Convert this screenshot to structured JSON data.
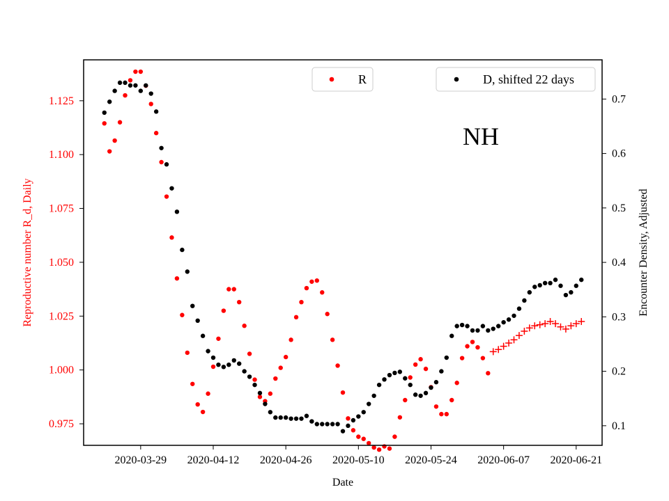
{
  "chart_data": {
    "type": "scatter",
    "title": "",
    "annotation": "NH",
    "xlabel": "Date",
    "ylabel_left": "Reproductive number R_d, Daily",
    "ylabel_right": "Encounter Density, Adjusted",
    "colors": {
      "R": "#ff0000",
      "D": "#000000",
      "left_axis": "#ff0000",
      "right_axis": "#000000"
    },
    "x_ticks": [
      "2020-03-29",
      "2020-04-12",
      "2020-04-26",
      "2020-05-10",
      "2020-05-24",
      "2020-06-07",
      "2020-06-21"
    ],
    "x_range": [
      "2020-03-18",
      "2020-06-26"
    ],
    "y_left_ticks": [
      "0.975",
      "1.000",
      "1.025",
      "1.050",
      "1.075",
      "1.100",
      "1.125"
    ],
    "y_left_range": [
      0.965,
      1.144
    ],
    "y_right_ticks": [
      "0.1",
      "0.2",
      "0.3",
      "0.4",
      "0.5",
      "0.6",
      "0.7"
    ],
    "y_right_range": [
      0.064,
      0.772
    ],
    "grid": false,
    "legends": [
      {
        "label": "R",
        "placement": "top-center"
      },
      {
        "label": "D, shifted 22 days",
        "placement": "top-right"
      }
    ],
    "series": [
      {
        "name": "R",
        "axis": "left",
        "marker": "dot",
        "points": [
          [
            "2020-03-22",
            1.1145
          ],
          [
            "2020-03-23",
            1.1015
          ],
          [
            "2020-03-24",
            1.1065
          ],
          [
            "2020-03-25",
            1.115
          ],
          [
            "2020-03-26",
            1.1275
          ],
          [
            "2020-03-27",
            1.1345
          ],
          [
            "2020-03-28",
            1.1385
          ],
          [
            "2020-03-29",
            1.1385
          ],
          [
            "2020-03-30",
            1.132
          ],
          [
            "2020-03-31",
            1.1235
          ],
          [
            "2020-04-01",
            1.11
          ],
          [
            "2020-04-02",
            1.0965
          ],
          [
            "2020-04-03",
            1.0805
          ],
          [
            "2020-04-04",
            1.0615
          ],
          [
            "2020-04-05",
            1.0425
          ],
          [
            "2020-04-06",
            1.0255
          ],
          [
            "2020-04-07",
            1.008
          ],
          [
            "2020-04-08",
            0.9935
          ],
          [
            "2020-04-09",
            0.984
          ],
          [
            "2020-04-10",
            0.9805
          ],
          [
            "2020-04-11",
            0.989
          ],
          [
            "2020-04-12",
            1.0015
          ],
          [
            "2020-04-13",
            1.0145
          ],
          [
            "2020-04-14",
            1.0275
          ],
          [
            "2020-04-15",
            1.0375
          ],
          [
            "2020-04-16",
            1.0375
          ],
          [
            "2020-04-17",
            1.0315
          ],
          [
            "2020-04-18",
            1.0205
          ],
          [
            "2020-04-19",
            1.0075
          ],
          [
            "2020-04-20",
            0.9955
          ],
          [
            "2020-04-21",
            0.9875
          ],
          [
            "2020-04-22",
            0.9855
          ],
          [
            "2020-04-23",
            0.989
          ],
          [
            "2020-04-24",
            0.996
          ],
          [
            "2020-04-25",
            1.001
          ],
          [
            "2020-04-26",
            1.006
          ],
          [
            "2020-04-27",
            1.014
          ],
          [
            "2020-04-28",
            1.0245
          ],
          [
            "2020-04-29",
            1.0315
          ],
          [
            "2020-04-30",
            1.038
          ],
          [
            "2020-05-01",
            1.041
          ],
          [
            "2020-05-02",
            1.0415
          ],
          [
            "2020-05-03",
            1.036
          ],
          [
            "2020-05-04",
            1.026
          ],
          [
            "2020-05-05",
            1.014
          ],
          [
            "2020-05-06",
            1.002
          ],
          [
            "2020-05-07",
            0.9895
          ],
          [
            "2020-05-08",
            0.9775
          ],
          [
            "2020-05-09",
            0.972
          ],
          [
            "2020-05-10",
            0.969
          ],
          [
            "2020-05-11",
            0.968
          ],
          [
            "2020-05-12",
            0.966
          ],
          [
            "2020-05-13",
            0.964
          ],
          [
            "2020-05-14",
            0.963
          ],
          [
            "2020-05-15",
            0.9645
          ],
          [
            "2020-05-16",
            0.9635
          ],
          [
            "2020-05-17",
            0.969
          ],
          [
            "2020-05-18",
            0.978
          ],
          [
            "2020-05-19",
            0.986
          ],
          [
            "2020-05-20",
            0.9965
          ],
          [
            "2020-05-21",
            1.0025
          ],
          [
            "2020-05-22",
            1.005
          ],
          [
            "2020-05-23",
            1.0005
          ],
          [
            "2020-05-24",
            0.992
          ],
          [
            "2020-05-25",
            0.983
          ],
          [
            "2020-05-26",
            0.9795
          ],
          [
            "2020-05-27",
            0.9795
          ],
          [
            "2020-05-28",
            0.986
          ],
          [
            "2020-05-29",
            0.994
          ],
          [
            "2020-05-30",
            1.0055
          ],
          [
            "2020-05-31",
            1.011
          ],
          [
            "2020-06-01",
            1.013
          ],
          [
            "2020-06-02",
            1.0105
          ],
          [
            "2020-06-03",
            1.0055
          ],
          [
            "2020-06-04",
            0.9985
          ]
        ]
      },
      {
        "name": "R",
        "axis": "left",
        "marker": "plus",
        "points": [
          [
            "2020-06-05",
            1.0085
          ],
          [
            "2020-06-06",
            1.0095
          ],
          [
            "2020-06-07",
            1.011
          ],
          [
            "2020-06-08",
            1.0125
          ],
          [
            "2020-06-09",
            1.014
          ],
          [
            "2020-06-10",
            1.016
          ],
          [
            "2020-06-11",
            1.018
          ],
          [
            "2020-06-12",
            1.0195
          ],
          [
            "2020-06-13",
            1.0205
          ],
          [
            "2020-06-14",
            1.021
          ],
          [
            "2020-06-15",
            1.0215
          ],
          [
            "2020-06-16",
            1.0225
          ],
          [
            "2020-06-17",
            1.0215
          ],
          [
            "2020-06-18",
            1.02
          ],
          [
            "2020-06-19",
            1.019
          ],
          [
            "2020-06-20",
            1.0205
          ],
          [
            "2020-06-21",
            1.0215
          ],
          [
            "2020-06-22",
            1.0225
          ]
        ]
      },
      {
        "name": "D, shifted 22 days",
        "axis": "right",
        "marker": "dot",
        "points": [
          [
            "2020-03-22",
            0.675
          ],
          [
            "2020-03-23",
            0.695
          ],
          [
            "2020-03-24",
            0.715
          ],
          [
            "2020-03-25",
            0.73
          ],
          [
            "2020-03-26",
            0.73
          ],
          [
            "2020-03-27",
            0.725
          ],
          [
            "2020-03-28",
            0.725
          ],
          [
            "2020-03-29",
            0.715
          ],
          [
            "2020-03-30",
            0.725
          ],
          [
            "2020-03-31",
            0.71
          ],
          [
            "2020-04-01",
            0.677
          ],
          [
            "2020-04-02",
            0.61
          ],
          [
            "2020-04-03",
            0.58
          ],
          [
            "2020-04-04",
            0.536
          ],
          [
            "2020-04-05",
            0.493
          ],
          [
            "2020-04-06",
            0.423
          ],
          [
            "2020-04-07",
            0.383
          ],
          [
            "2020-04-08",
            0.32
          ],
          [
            "2020-04-09",
            0.293
          ],
          [
            "2020-04-10",
            0.265
          ],
          [
            "2020-04-11",
            0.237
          ],
          [
            "2020-04-12",
            0.225
          ],
          [
            "2020-04-13",
            0.212
          ],
          [
            "2020-04-14",
            0.208
          ],
          [
            "2020-04-15",
            0.212
          ],
          [
            "2020-04-16",
            0.22
          ],
          [
            "2020-04-17",
            0.214
          ],
          [
            "2020-04-18",
            0.2
          ],
          [
            "2020-04-19",
            0.19
          ],
          [
            "2020-04-20",
            0.175
          ],
          [
            "2020-04-21",
            0.16
          ],
          [
            "2020-04-22",
            0.14
          ],
          [
            "2020-04-23",
            0.125
          ],
          [
            "2020-04-24",
            0.115
          ],
          [
            "2020-04-25",
            0.115
          ],
          [
            "2020-04-26",
            0.115
          ],
          [
            "2020-04-27",
            0.113
          ],
          [
            "2020-04-28",
            0.113
          ],
          [
            "2020-04-29",
            0.113
          ],
          [
            "2020-04-30",
            0.118
          ],
          [
            "2020-05-01",
            0.108
          ],
          [
            "2020-05-02",
            0.103
          ],
          [
            "2020-05-03",
            0.103
          ],
          [
            "2020-05-04",
            0.103
          ],
          [
            "2020-05-05",
            0.103
          ],
          [
            "2020-05-06",
            0.103
          ],
          [
            "2020-05-07",
            0.09
          ],
          [
            "2020-05-08",
            0.1
          ],
          [
            "2020-05-09",
            0.11
          ],
          [
            "2020-05-10",
            0.117
          ],
          [
            "2020-05-11",
            0.125
          ],
          [
            "2020-05-12",
            0.14
          ],
          [
            "2020-05-13",
            0.155
          ],
          [
            "2020-05-14",
            0.175
          ],
          [
            "2020-05-15",
            0.185
          ],
          [
            "2020-05-16",
            0.193
          ],
          [
            "2020-05-17",
            0.197
          ],
          [
            "2020-05-18",
            0.199
          ],
          [
            "2020-05-19",
            0.187
          ],
          [
            "2020-05-20",
            0.175
          ],
          [
            "2020-05-21",
            0.157
          ],
          [
            "2020-05-22",
            0.155
          ],
          [
            "2020-05-23",
            0.16
          ],
          [
            "2020-05-24",
            0.17
          ],
          [
            "2020-05-25",
            0.18
          ],
          [
            "2020-05-26",
            0.2
          ],
          [
            "2020-05-27",
            0.225
          ],
          [
            "2020-05-28",
            0.265
          ],
          [
            "2020-05-29",
            0.283
          ],
          [
            "2020-05-30",
            0.285
          ],
          [
            "2020-05-31",
            0.283
          ],
          [
            "2020-06-01",
            0.275
          ],
          [
            "2020-06-02",
            0.275
          ],
          [
            "2020-06-03",
            0.283
          ],
          [
            "2020-06-04",
            0.275
          ],
          [
            "2020-06-05",
            0.278
          ],
          [
            "2020-06-06",
            0.283
          ],
          [
            "2020-06-07",
            0.29
          ],
          [
            "2020-06-08",
            0.295
          ],
          [
            "2020-06-09",
            0.302
          ],
          [
            "2020-06-10",
            0.315
          ],
          [
            "2020-06-11",
            0.33
          ],
          [
            "2020-06-12",
            0.345
          ],
          [
            "2020-06-13",
            0.355
          ],
          [
            "2020-06-14",
            0.358
          ],
          [
            "2020-06-15",
            0.362
          ],
          [
            "2020-06-16",
            0.362
          ],
          [
            "2020-06-17",
            0.368
          ],
          [
            "2020-06-18",
            0.357
          ],
          [
            "2020-06-19",
            0.34
          ],
          [
            "2020-06-20",
            0.345
          ],
          [
            "2020-06-21",
            0.357
          ],
          [
            "2020-06-22",
            0.368
          ]
        ]
      }
    ]
  }
}
